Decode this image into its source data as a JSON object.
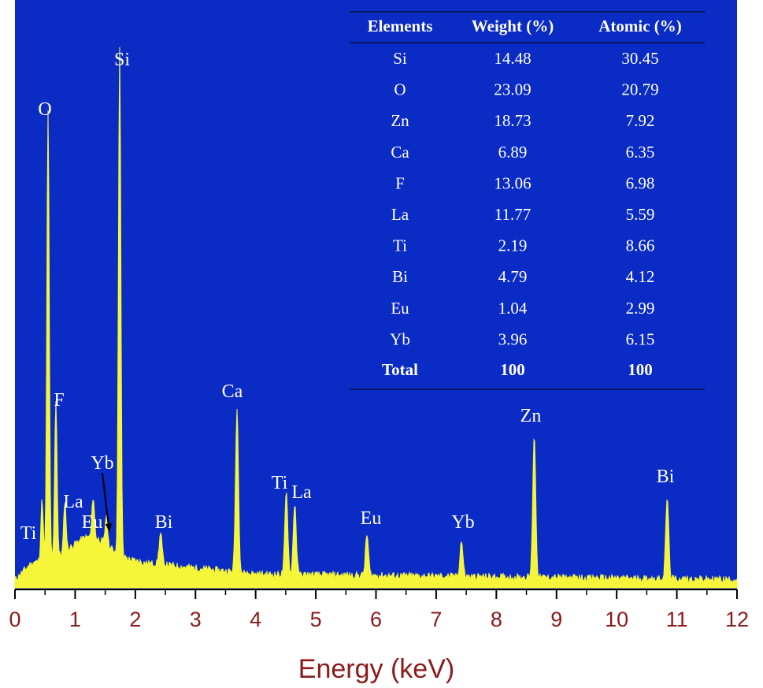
{
  "chart_data": {
    "type": "line",
    "title": "",
    "xlabel": "Energy (keV)",
    "ylabel": "",
    "xlim": [
      0,
      12
    ],
    "x_ticks": [
      "0",
      "1",
      "2",
      "3",
      "4",
      "5",
      "6",
      "7",
      "8",
      "9",
      "10",
      "11",
      "12"
    ],
    "grid": false,
    "colors": {
      "plot_background": "#0a2bc4",
      "spectrum": "#f5f53a",
      "axis_text": "#8b1a1a",
      "label_text": "#ffffff"
    },
    "peaks": [
      {
        "label": "Ti",
        "energy": 0.45,
        "intensity": 0.12
      },
      {
        "label": "O",
        "energy": 0.55,
        "intensity": 0.88
      },
      {
        "label": "F",
        "energy": 0.68,
        "intensity": 0.31
      },
      {
        "label": "La",
        "energy": 0.83,
        "intensity": 0.1
      },
      {
        "label": "Eu",
        "energy": 1.3,
        "intensity": 0.08
      },
      {
        "label": "Yb",
        "energy": 1.52,
        "intensity": 0.06
      },
      {
        "label": "Si",
        "energy": 1.74,
        "intensity": 1.0
      },
      {
        "label": "Bi",
        "energy": 2.42,
        "intensity": 0.06
      },
      {
        "label": "Ca",
        "energy": 3.69,
        "intensity": 0.32
      },
      {
        "label": "Ti",
        "energy": 4.51,
        "intensity": 0.16
      },
      {
        "label": "La",
        "energy": 4.65,
        "intensity": 0.14
      },
      {
        "label": "Eu",
        "energy": 5.85,
        "intensity": 0.08
      },
      {
        "label": "Yb",
        "energy": 7.42,
        "intensity": 0.07
      },
      {
        "label": "Zn",
        "energy": 8.63,
        "intensity": 0.28
      },
      {
        "label": "Bi",
        "energy": 10.84,
        "intensity": 0.16
      }
    ]
  },
  "composition_table": {
    "headers": [
      "Elements",
      "Weight (%)",
      "Atomic (%)"
    ],
    "rows": [
      [
        "Si",
        "14.48",
        "30.45"
      ],
      [
        "O",
        "23.09",
        "20.79"
      ],
      [
        "Zn",
        "18.73",
        "7.92"
      ],
      [
        "Ca",
        "6.89",
        "6.35"
      ],
      [
        "F",
        "13.06",
        "6.98"
      ],
      [
        "La",
        "11.77",
        "5.59"
      ],
      [
        "Ti",
        "2.19",
        "8.66"
      ],
      [
        "Bi",
        "4.79",
        "4.12"
      ],
      [
        "Eu",
        "1.04",
        "2.99"
      ],
      [
        "Yb",
        "3.96",
        "6.15"
      ]
    ],
    "total": [
      "Total",
      "100",
      "100"
    ]
  }
}
